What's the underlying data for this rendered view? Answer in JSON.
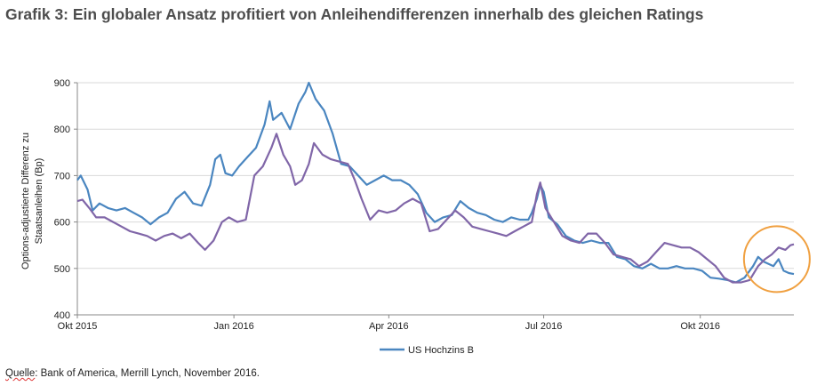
{
  "title": "Grafik 3: Ein globaler Ansatz profitiert von Anleihendifferenzen innerhalb des gleichen Ratings",
  "source": {
    "prefix": "Quelle",
    "text": ": Bank of America, Merrill Lynch, November 2016."
  },
  "chart_data": {
    "type": "line",
    "ylabel_line1": "Options-adjustierte Differenz zu",
    "ylabel_line2": "Staatsanleihen (Bp)",
    "ylim": [
      400,
      900
    ],
    "yticks": [
      400,
      500,
      600,
      700,
      800,
      900
    ],
    "x_range": [
      "2015-10-01",
      "2016-11-25"
    ],
    "xticks": [
      {
        "label": "Okt 2015",
        "date": "2015-10-01"
      },
      {
        "label": "Jan 2016",
        "date": "2016-01-01"
      },
      {
        "label": "Apr 2016",
        "date": "2016-04-01"
      },
      {
        "label": "Jul 2016",
        "date": "2016-07-01"
      },
      {
        "label": "Okt 2016",
        "date": "2016-10-01"
      }
    ],
    "grid": "horizontal",
    "legend_position": "bottom",
    "highlight": {
      "shape": "circle",
      "color": "#f0a040",
      "center_date": "2016-11-15",
      "center_value": 520,
      "label": ""
    },
    "series": [
      {
        "name": "US Hochzins B",
        "color": "#4a86c0",
        "points": [
          [
            "2015-10-01",
            690
          ],
          [
            "2015-10-03",
            700
          ],
          [
            "2015-10-07",
            670
          ],
          [
            "2015-10-10",
            625
          ],
          [
            "2015-10-14",
            640
          ],
          [
            "2015-10-19",
            630
          ],
          [
            "2015-10-24",
            625
          ],
          [
            "2015-10-29",
            630
          ],
          [
            "2015-11-03",
            620
          ],
          [
            "2015-11-08",
            610
          ],
          [
            "2015-11-13",
            595
          ],
          [
            "2015-11-18",
            610
          ],
          [
            "2015-11-23",
            620
          ],
          [
            "2015-11-28",
            650
          ],
          [
            "2015-12-03",
            665
          ],
          [
            "2015-12-08",
            640
          ],
          [
            "2015-12-13",
            635
          ],
          [
            "2015-12-18",
            680
          ],
          [
            "2015-12-21",
            735
          ],
          [
            "2015-12-24",
            745
          ],
          [
            "2015-12-27",
            705
          ],
          [
            "2015-12-31",
            700
          ],
          [
            "2016-01-04",
            720
          ],
          [
            "2016-01-09",
            740
          ],
          [
            "2016-01-14",
            760
          ],
          [
            "2016-01-19",
            810
          ],
          [
            "2016-01-22",
            860
          ],
          [
            "2016-01-24",
            820
          ],
          [
            "2016-01-29",
            835
          ],
          [
            "2016-02-03",
            800
          ],
          [
            "2016-02-08",
            855
          ],
          [
            "2016-02-12",
            880
          ],
          [
            "2016-02-14",
            900
          ],
          [
            "2016-02-18",
            865
          ],
          [
            "2016-02-23",
            840
          ],
          [
            "2016-02-28",
            790
          ],
          [
            "2016-03-04",
            725
          ],
          [
            "2016-03-09",
            720
          ],
          [
            "2016-03-14",
            700
          ],
          [
            "2016-03-19",
            680
          ],
          [
            "2016-03-24",
            690
          ],
          [
            "2016-03-29",
            700
          ],
          [
            "2016-04-03",
            690
          ],
          [
            "2016-04-08",
            690
          ],
          [
            "2016-04-13",
            680
          ],
          [
            "2016-04-18",
            660
          ],
          [
            "2016-04-23",
            620
          ],
          [
            "2016-04-28",
            600
          ],
          [
            "2016-05-03",
            610
          ],
          [
            "2016-05-08",
            615
          ],
          [
            "2016-05-13",
            645
          ],
          [
            "2016-05-18",
            630
          ],
          [
            "2016-05-23",
            620
          ],
          [
            "2016-05-28",
            615
          ],
          [
            "2016-06-02",
            605
          ],
          [
            "2016-06-07",
            600
          ],
          [
            "2016-06-12",
            610
          ],
          [
            "2016-06-17",
            605
          ],
          [
            "2016-06-22",
            605
          ],
          [
            "2016-06-24",
            620
          ],
          [
            "2016-06-27",
            650
          ],
          [
            "2016-06-29",
            680
          ],
          [
            "2016-07-01",
            665
          ],
          [
            "2016-07-04",
            610
          ],
          [
            "2016-07-09",
            595
          ],
          [
            "2016-07-14",
            570
          ],
          [
            "2016-07-19",
            560
          ],
          [
            "2016-07-24",
            555
          ],
          [
            "2016-07-29",
            560
          ],
          [
            "2016-08-03",
            555
          ],
          [
            "2016-08-08",
            555
          ],
          [
            "2016-08-13",
            525
          ],
          [
            "2016-08-18",
            520
          ],
          [
            "2016-08-23",
            505
          ],
          [
            "2016-08-28",
            500
          ],
          [
            "2016-09-02",
            510
          ],
          [
            "2016-09-07",
            500
          ],
          [
            "2016-09-12",
            500
          ],
          [
            "2016-09-17",
            505
          ],
          [
            "2016-09-22",
            500
          ],
          [
            "2016-09-27",
            500
          ],
          [
            "2016-10-02",
            495
          ],
          [
            "2016-10-07",
            480
          ],
          [
            "2016-10-12",
            478
          ],
          [
            "2016-10-17",
            475
          ],
          [
            "2016-10-22",
            470
          ],
          [
            "2016-10-27",
            480
          ],
          [
            "2016-11-01",
            505
          ],
          [
            "2016-11-04",
            525
          ],
          [
            "2016-11-07",
            515
          ],
          [
            "2016-11-10",
            510
          ],
          [
            "2016-11-13",
            505
          ],
          [
            "2016-11-16",
            520
          ],
          [
            "2016-11-19",
            495
          ],
          [
            "2016-11-22",
            490
          ],
          [
            "2016-11-25",
            488
          ]
        ]
      },
      {
        "name": "",
        "color": "#8066a8",
        "points": [
          [
            "2015-10-01",
            645
          ],
          [
            "2015-10-04",
            648
          ],
          [
            "2015-10-08",
            630
          ],
          [
            "2015-10-12",
            610
          ],
          [
            "2015-10-17",
            610
          ],
          [
            "2015-10-22",
            600
          ],
          [
            "2015-10-27",
            590
          ],
          [
            "2015-11-01",
            580
          ],
          [
            "2015-11-06",
            575
          ],
          [
            "2015-11-11",
            570
          ],
          [
            "2015-11-16",
            560
          ],
          [
            "2015-11-21",
            570
          ],
          [
            "2015-11-26",
            575
          ],
          [
            "2015-12-01",
            565
          ],
          [
            "2015-12-06",
            575
          ],
          [
            "2015-12-11",
            555
          ],
          [
            "2015-12-15",
            540
          ],
          [
            "2015-12-20",
            560
          ],
          [
            "2015-12-25",
            600
          ],
          [
            "2015-12-29",
            610
          ],
          [
            "2016-01-03",
            600
          ],
          [
            "2016-01-08",
            605
          ],
          [
            "2016-01-13",
            700
          ],
          [
            "2016-01-18",
            720
          ],
          [
            "2016-01-23",
            760
          ],
          [
            "2016-01-26",
            790
          ],
          [
            "2016-01-30",
            745
          ],
          [
            "2016-02-03",
            720
          ],
          [
            "2016-02-06",
            680
          ],
          [
            "2016-02-10",
            690
          ],
          [
            "2016-02-14",
            725
          ],
          [
            "2016-02-17",
            770
          ],
          [
            "2016-02-22",
            745
          ],
          [
            "2016-02-27",
            735
          ],
          [
            "2016-03-03",
            730
          ],
          [
            "2016-03-08",
            725
          ],
          [
            "2016-03-12",
            690
          ],
          [
            "2016-03-16",
            650
          ],
          [
            "2016-03-21",
            605
          ],
          [
            "2016-03-26",
            625
          ],
          [
            "2016-03-31",
            620
          ],
          [
            "2016-04-05",
            625
          ],
          [
            "2016-04-10",
            640
          ],
          [
            "2016-04-15",
            650
          ],
          [
            "2016-04-20",
            640
          ],
          [
            "2016-04-25",
            580
          ],
          [
            "2016-04-30",
            585
          ],
          [
            "2016-05-05",
            605
          ],
          [
            "2016-05-10",
            625
          ],
          [
            "2016-05-15",
            610
          ],
          [
            "2016-05-20",
            590
          ],
          [
            "2016-05-25",
            585
          ],
          [
            "2016-05-30",
            580
          ],
          [
            "2016-06-04",
            575
          ],
          [
            "2016-06-09",
            570
          ],
          [
            "2016-06-14",
            580
          ],
          [
            "2016-06-19",
            590
          ],
          [
            "2016-06-24",
            600
          ],
          [
            "2016-06-27",
            660
          ],
          [
            "2016-06-29",
            685
          ],
          [
            "2016-07-02",
            630
          ],
          [
            "2016-07-07",
            600
          ],
          [
            "2016-07-12",
            570
          ],
          [
            "2016-07-17",
            560
          ],
          [
            "2016-07-22",
            555
          ],
          [
            "2016-07-27",
            575
          ],
          [
            "2016-08-01",
            575
          ],
          [
            "2016-08-06",
            555
          ],
          [
            "2016-08-11",
            530
          ],
          [
            "2016-08-16",
            525
          ],
          [
            "2016-08-21",
            520
          ],
          [
            "2016-08-26",
            505
          ],
          [
            "2016-08-31",
            515
          ],
          [
            "2016-09-05",
            535
          ],
          [
            "2016-09-10",
            555
          ],
          [
            "2016-09-15",
            550
          ],
          [
            "2016-09-20",
            545
          ],
          [
            "2016-09-25",
            545
          ],
          [
            "2016-09-30",
            535
          ],
          [
            "2016-10-05",
            520
          ],
          [
            "2016-10-10",
            505
          ],
          [
            "2016-10-15",
            480
          ],
          [
            "2016-10-20",
            470
          ],
          [
            "2016-10-25",
            470
          ],
          [
            "2016-10-30",
            475
          ],
          [
            "2016-11-04",
            505
          ],
          [
            "2016-11-08",
            520
          ],
          [
            "2016-11-12",
            530
          ],
          [
            "2016-11-16",
            545
          ],
          [
            "2016-11-20",
            540
          ],
          [
            "2016-11-23",
            550
          ],
          [
            "2016-11-25",
            552
          ]
        ]
      }
    ]
  }
}
